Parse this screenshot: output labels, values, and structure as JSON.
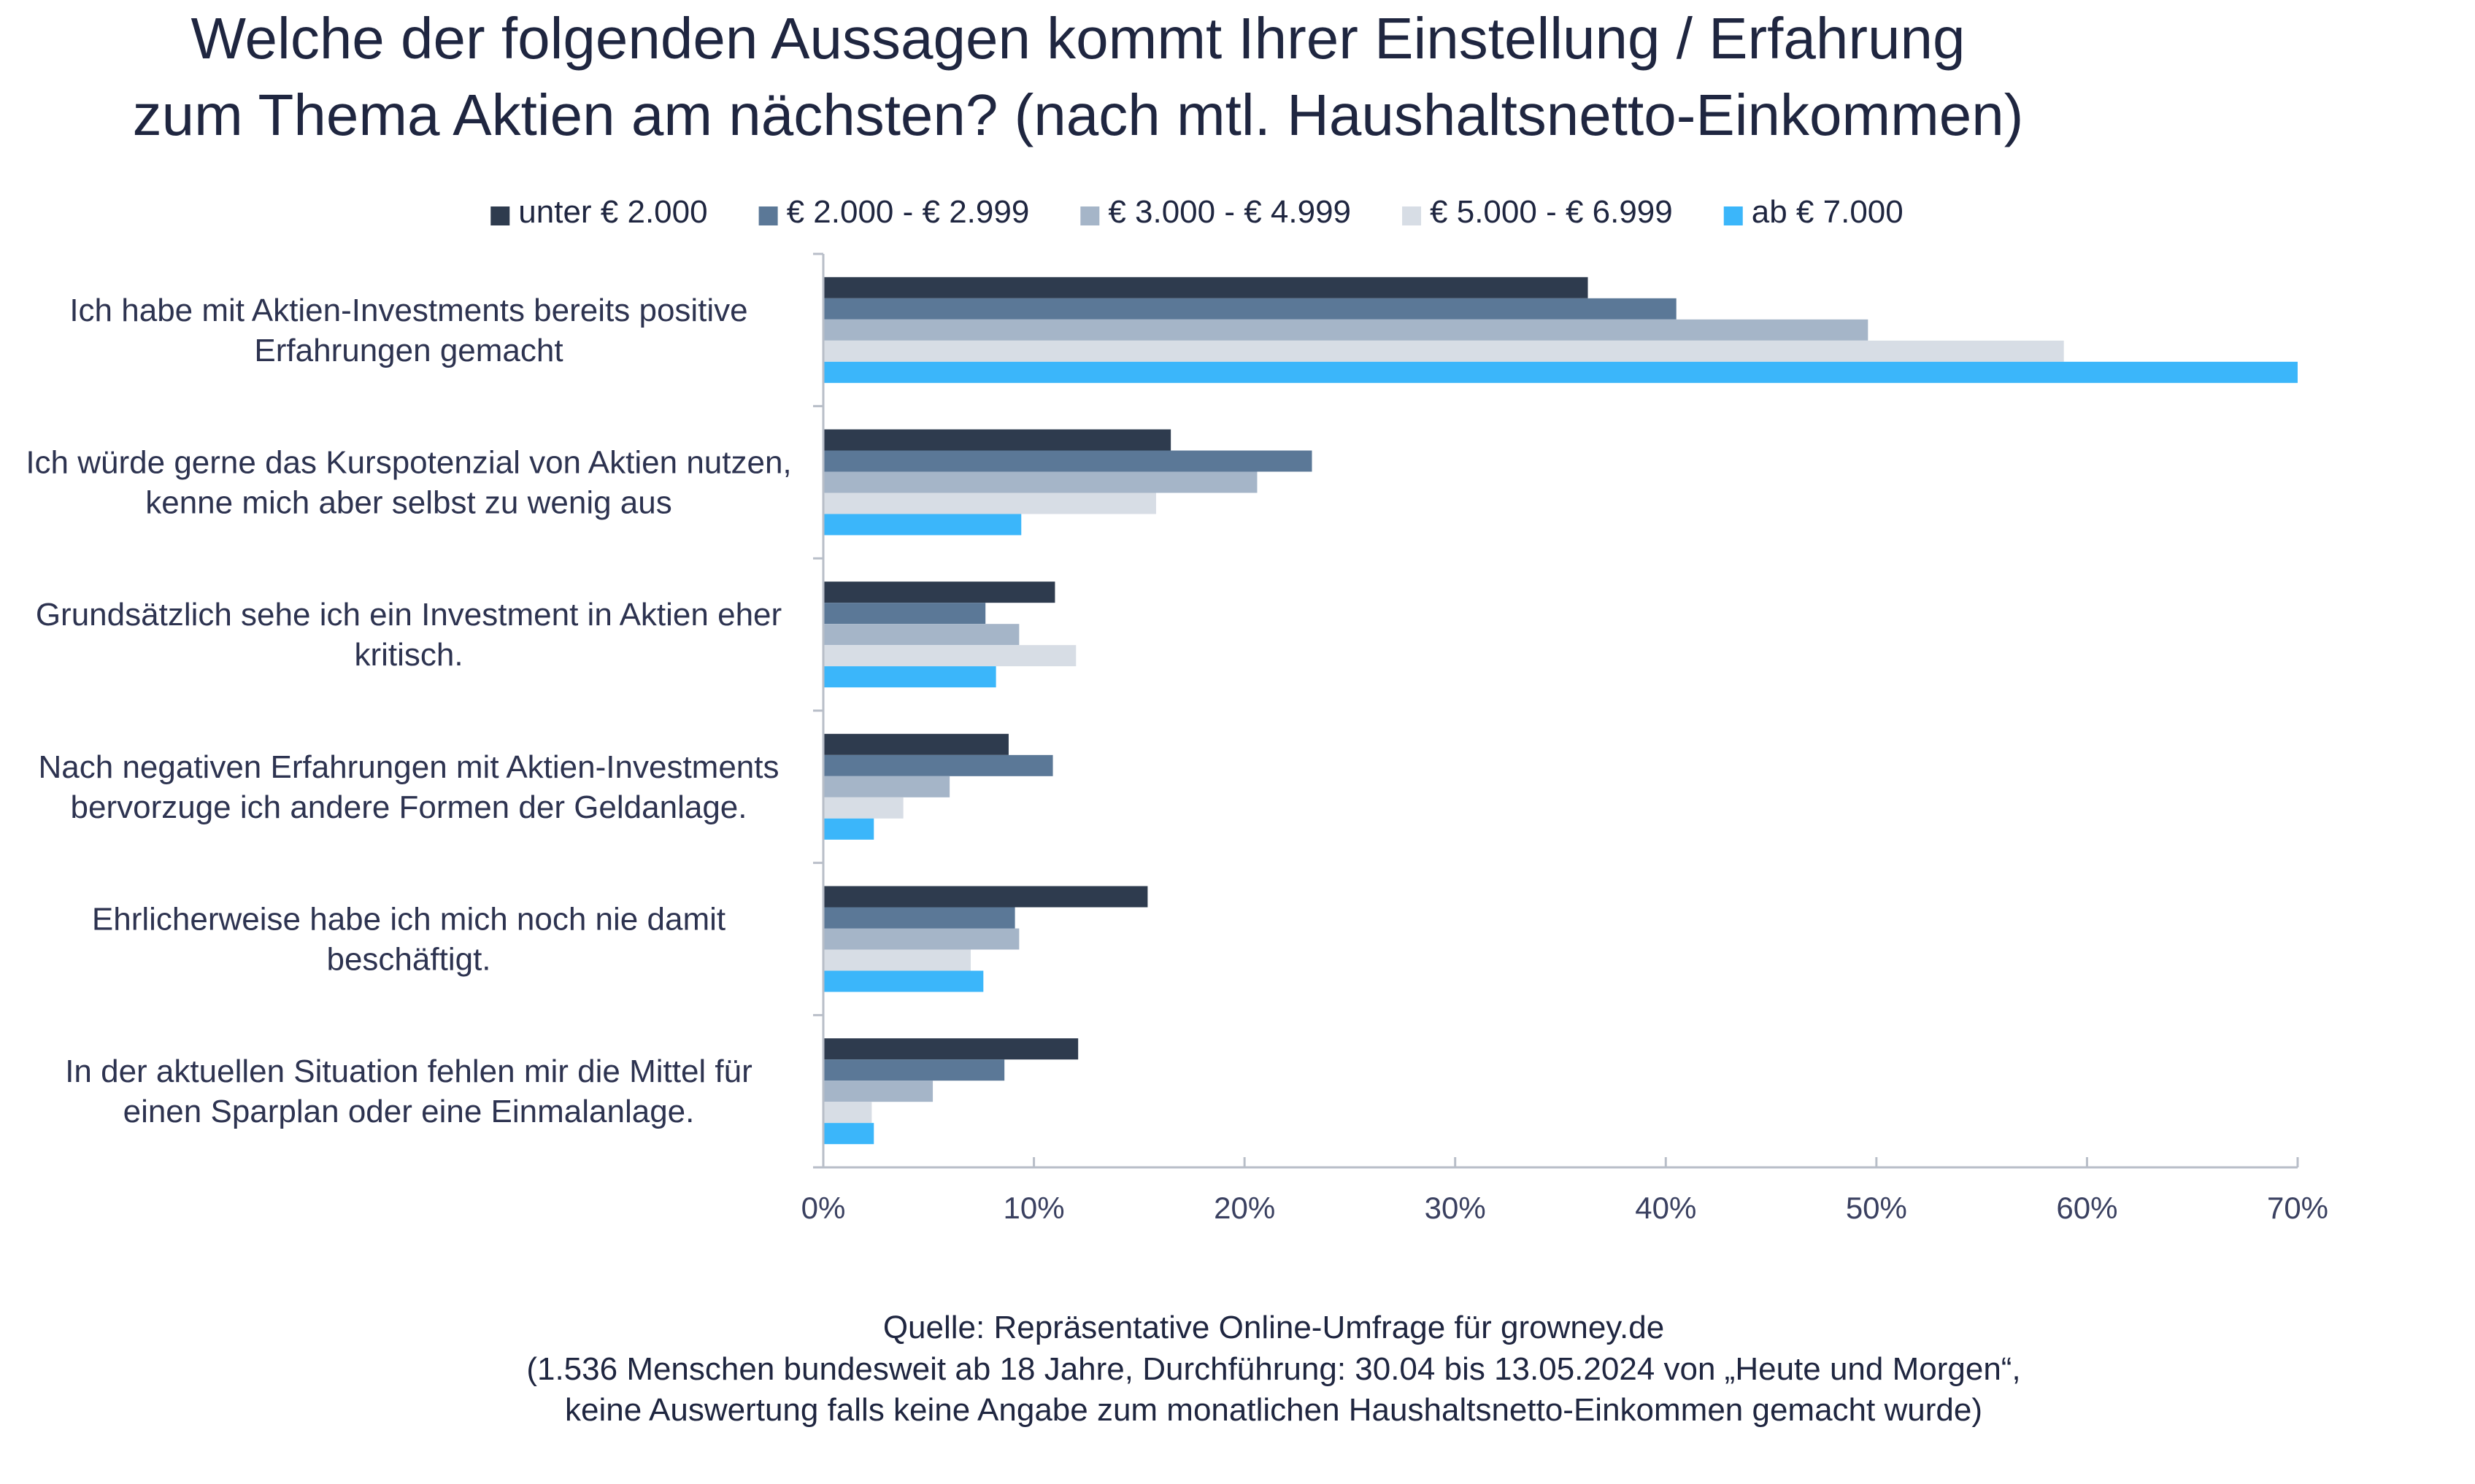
{
  "chart_data": {
    "type": "bar",
    "orientation": "horizontal",
    "title": [
      "Welche der folgenden Aussagen kommt Ihrer Einstellung / Erfahrung",
      "zum Thema Aktien am nächsten? (nach mtl. Haushaltsnetto-Einkommen)"
    ],
    "categories": [
      [
        "Ich habe mit Aktien-Investments bereits positive",
        "Erfahrungen gemacht"
      ],
      [
        "Ich würde gerne das Kurspotenzial von Aktien nutzen,",
        "kenne mich aber selbst zu wenig aus"
      ],
      [
        "Grundsätzlich sehe ich ein Investment in Aktien eher",
        "kritisch."
      ],
      [
        "Nach negativen Erfahrungen mit Aktien-Investments",
        "bervorzuge ich andere Formen der Geldanlage."
      ],
      [
        "Ehrlicherweise habe ich mich noch nie damit",
        "beschäftigt."
      ],
      [
        "In der aktuellen Situation fehlen mir die Mittel für",
        "einen Sparplan oder eine Einmalanlage."
      ]
    ],
    "series": [
      {
        "name": "unter € 2.000",
        "color": "#2e3b4e",
        "values": [
          36.3,
          16.5,
          11.0,
          8.8,
          15.4,
          12.1
        ]
      },
      {
        "name": "€ 2.000 - € 2.999",
        "color": "#5b7897",
        "values": [
          40.5,
          23.2,
          7.7,
          10.9,
          9.1,
          8.6
        ]
      },
      {
        "name": "€ 3.000 - € 4.999",
        "color": "#a5b5c8",
        "values": [
          49.6,
          20.6,
          9.3,
          6.0,
          9.3,
          5.2
        ]
      },
      {
        "name": "€ 5.000 - € 6.999",
        "color": "#d7dde5",
        "values": [
          58.9,
          15.8,
          12.0,
          3.8,
          7.0,
          2.3
        ]
      },
      {
        "name": "ab € 7.000",
        "color": "#3bb6fa",
        "values": [
          70.0,
          9.4,
          8.2,
          2.4,
          7.6,
          2.4
        ]
      }
    ],
    "xlim": [
      0,
      70
    ],
    "xticks": [
      "0%",
      "10%",
      "20%",
      "30%",
      "40%",
      "50%",
      "60%",
      "70%"
    ],
    "xlabel": "",
    "ylabel": "",
    "legend": "top",
    "grid": false
  },
  "source": [
    "Quelle: Repräsentative Online-Umfrage für growney.de",
    "(1.536 Menschen bundesweit ab 18 Jahre, Durchführung: 30.04 bis 13.05.2024 von „Heute und Morgen“,",
    "keine Auswertung falls keine Angabe zum monatlichen Haushaltsnetto-Einkommen gemacht wurde)"
  ]
}
